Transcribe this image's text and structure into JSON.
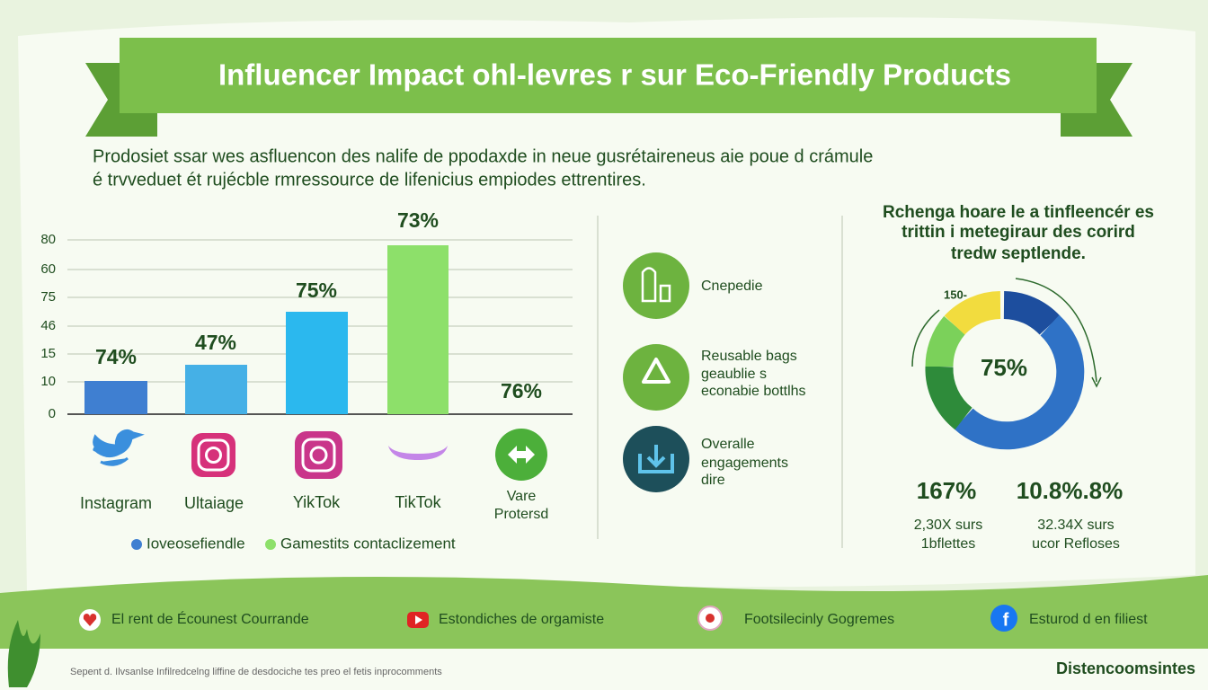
{
  "header": {
    "title": "Influencer Impact ohl-levres r sur Eco-Friendly Products"
  },
  "intro": [
    "Prodosiet ssar wes asfluencon des nalife de ppodaxde in neue gusrétaireneus aie poue d crámule",
    "é trvveduet ét rujécble rmressource de lifenicius empiodes ettrentires."
  ],
  "bar_panel": {
    "axis_labels": [
      "80",
      "60",
      "75",
      "46",
      "15",
      "10",
      "0"
    ],
    "value_labels": [
      "74%",
      "47%",
      "75%",
      "73%",
      "76%"
    ],
    "platforms": [
      "Instagram",
      "Ultaiage",
      "YikTok",
      "TikTok",
      "Vare",
      "Protersd"
    ],
    "legend": [
      "Ioveosefiendle",
      "Gamestits contaclizement"
    ]
  },
  "middle_panel": {
    "items": [
      {
        "lines": [
          "Cnepedie"
        ]
      },
      {
        "lines": [
          "Reusable bags",
          "geaublie s",
          "econabie bottlhs"
        ]
      },
      {
        "lines": [
          "Overalle",
          "engagements",
          "dire"
        ]
      }
    ]
  },
  "right_panel": {
    "title": [
      "Rchenga hoare le a tinfleencér es",
      "trittin i metegiraur des corird",
      "tredw septlende."
    ],
    "donut_small_label": "150-",
    "donut_center": "75%",
    "stats": [
      {
        "value": "167%",
        "lines": [
          "2,30X surs",
          "1bflettes"
        ]
      },
      {
        "value": "10.8%.8%",
        "lines": [
          "32.34X surs",
          "ucor Refloses"
        ]
      }
    ]
  },
  "footer": {
    "links": [
      "El rent de Écounest Courrande",
      "Estondiches de orgamiste",
      "Footsilecinly Gogremes",
      "Esturod d en filiest"
    ],
    "note": "Sepent d. Ilvsanlse Infilredcelng liffine de desdociche tes preo el fetis inprocomments",
    "brand": "Distencoomsintes"
  }
}
